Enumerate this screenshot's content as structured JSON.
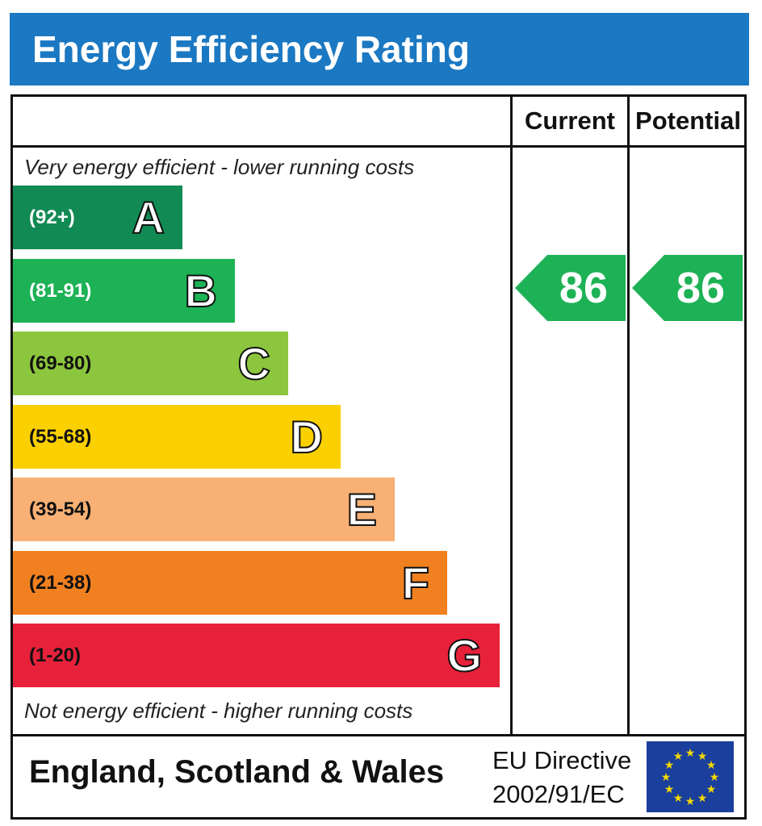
{
  "title": "Energy Efficiency Rating",
  "columns": {
    "current": "Current",
    "potential": "Potential"
  },
  "top_note": "Very energy efficient - lower running costs",
  "bottom_note": "Not energy efficient - higher running costs",
  "chart_data": {
    "type": "bar",
    "bands": [
      {
        "letter": "A",
        "range": "(92+)",
        "color": "#128a54",
        "text_color": "#ffffff"
      },
      {
        "letter": "B",
        "range": "(81-91)",
        "color": "#1db255",
        "text_color": "#ffffff"
      },
      {
        "letter": "C",
        "range": "(69-80)",
        "color": "#8cc63e",
        "text_color": "#111111"
      },
      {
        "letter": "D",
        "range": "(55-68)",
        "color": "#fbd000",
        "text_color": "#111111"
      },
      {
        "letter": "E",
        "range": "(39-54)",
        "color": "#f8b074",
        "text_color": "#111111"
      },
      {
        "letter": "F",
        "range": "(21-38)",
        "color": "#f08020",
        "text_color": "#111111"
      },
      {
        "letter": "G",
        "range": "(1-20)",
        "color": "#e8213a",
        "text_color": "#111111"
      }
    ],
    "current": {
      "value": "86",
      "band": "B",
      "color": "#1db255"
    },
    "potential": {
      "value": "86",
      "band": "B",
      "color": "#1db255"
    }
  },
  "footer": {
    "region": "England, Scotland & Wales",
    "directive_line1": "EU Directive",
    "directive_line2": "2002/91/EC"
  }
}
